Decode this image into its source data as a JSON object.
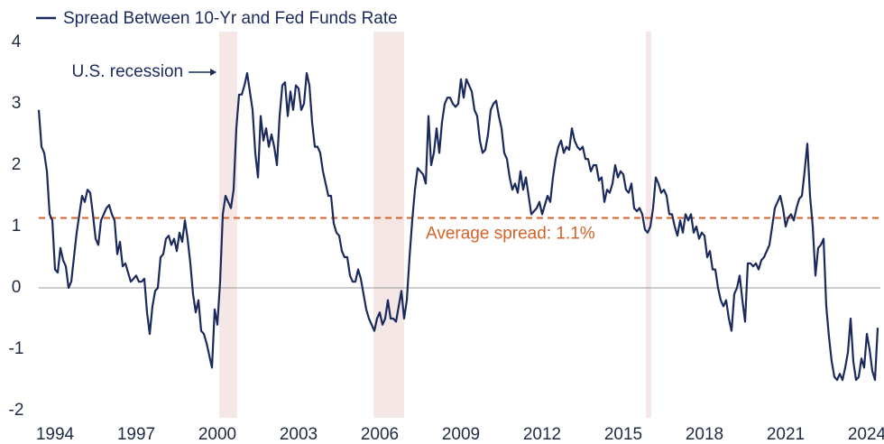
{
  "chart_data": {
    "type": "line",
    "series": [
      {
        "name": "Spread Between 10-Yr and Fed Funds Rate",
        "color": "#1b2a5c",
        "x": [
          1993.4,
          1993.5,
          1993.6,
          1993.7,
          1993.8,
          1993.9,
          1994,
          1994.1,
          1994.2,
          1994.3,
          1994.4,
          1994.5,
          1994.6,
          1994.7,
          1994.8,
          1994.9,
          1995,
          1995.1,
          1995.2,
          1995.3,
          1995.4,
          1995.5,
          1995.6,
          1995.7,
          1995.8,
          1995.9,
          1996,
          1996.1,
          1996.2,
          1996.3,
          1996.4,
          1996.5,
          1996.6,
          1996.7,
          1996.8,
          1996.9,
          1997,
          1997.1,
          1997.2,
          1997.3,
          1997.4,
          1997.5,
          1997.6,
          1997.7,
          1997.8,
          1997.9,
          1998,
          1998.1,
          1998.2,
          1998.3,
          1998.4,
          1998.5,
          1998.6,
          1998.7,
          1998.8,
          1998.9,
          1999,
          1999.1,
          1999.2,
          1999.3,
          1999.4,
          1999.5,
          1999.6,
          1999.7,
          1999.8,
          1999.9,
          2000,
          2000.1,
          2000.2,
          2000.3,
          2000.4,
          2000.5,
          2000.6,
          2000.7,
          2000.8,
          2000.9,
          2001,
          2001.1,
          2001.2,
          2001.3,
          2001.4,
          2001.5,
          2001.6,
          2001.7,
          2001.8,
          2001.9,
          2002,
          2002.1,
          2002.2,
          2002.3,
          2002.4,
          2002.5,
          2002.6,
          2002.7,
          2002.8,
          2002.9,
          2003,
          2003.1,
          2003.2,
          2003.3,
          2003.4,
          2003.5,
          2003.6,
          2003.7,
          2003.8,
          2003.9,
          2004,
          2004.1,
          2004.2,
          2004.3,
          2004.4,
          2004.5,
          2004.6,
          2004.7,
          2004.8,
          2004.9,
          2005,
          2005.1,
          2005.2,
          2005.3,
          2005.4,
          2005.5,
          2005.6,
          2005.7,
          2005.8,
          2005.9,
          2006,
          2006.1,
          2006.2,
          2006.3,
          2006.4,
          2006.5,
          2006.6,
          2006.7,
          2006.8,
          2006.9,
          2007,
          2007.1,
          2007.2,
          2007.3,
          2007.4,
          2007.5,
          2007.6,
          2007.7,
          2007.8,
          2007.9,
          2008,
          2008.1,
          2008.2,
          2008.3,
          2008.4,
          2008.5,
          2008.6,
          2008.7,
          2008.8,
          2008.9,
          2009,
          2009.1,
          2009.2,
          2009.3,
          2009.4,
          2009.5,
          2009.6,
          2009.7,
          2009.8,
          2009.9,
          2010,
          2010.1,
          2010.2,
          2010.3,
          2010.4,
          2010.5,
          2010.6,
          2010.7,
          2010.8,
          2010.9,
          2011,
          2011.1,
          2011.2,
          2011.3,
          2011.4,
          2011.5,
          2011.6,
          2011.7,
          2011.8,
          2011.9,
          2012,
          2012.1,
          2012.2,
          2012.3,
          2012.4,
          2012.5,
          2012.6,
          2012.7,
          2012.8,
          2012.9,
          2013,
          2013.1,
          2013.2,
          2013.3,
          2013.4,
          2013.5,
          2013.6,
          2013.7,
          2013.8,
          2013.9,
          2014,
          2014.1,
          2014.2,
          2014.3,
          2014.4,
          2014.5,
          2014.6,
          2014.7,
          2014.8,
          2014.9,
          2015,
          2015.1,
          2015.2,
          2015.3,
          2015.4,
          2015.5,
          2015.6,
          2015.7,
          2015.8,
          2015.9,
          2016,
          2016.1,
          2016.2,
          2016.3,
          2016.4,
          2016.5,
          2016.6,
          2016.7,
          2016.8,
          2016.9,
          2017,
          2017.1,
          2017.2,
          2017.3,
          2017.4,
          2017.5,
          2017.6,
          2017.7,
          2017.8,
          2017.9,
          2018,
          2018.1,
          2018.2,
          2018.3,
          2018.4,
          2018.5,
          2018.6,
          2018.7,
          2018.8,
          2018.9,
          2019,
          2019.1,
          2019.2,
          2019.3,
          2019.4,
          2019.5,
          2019.6,
          2019.7,
          2019.8,
          2019.9,
          2020,
          2020.1,
          2020.2,
          2020.3,
          2020.4,
          2020.5,
          2020.6,
          2020.7,
          2020.8,
          2020.9,
          2021,
          2021.1,
          2021.2,
          2021.3,
          2021.4,
          2021.5,
          2021.6,
          2021.7,
          2021.8,
          2021.9,
          2022,
          2022.1,
          2022.2,
          2022.3,
          2022.4,
          2022.5,
          2022.6,
          2022.7,
          2022.8,
          2022.9,
          2023,
          2023.1,
          2023.2,
          2023.3,
          2023.4,
          2023.5,
          2023.6,
          2023.7,
          2023.8,
          2023.9,
          2024,
          2024.1,
          2024.2,
          2024.3,
          2024.4
        ],
        "values": [
          2.9,
          2.3,
          2.2,
          1.9,
          1.2,
          1.1,
          0.3,
          0.25,
          0.65,
          0.45,
          0.35,
          0.0,
          0.1,
          0.5,
          0.9,
          1.2,
          1.5,
          1.4,
          1.6,
          1.55,
          1.2,
          0.8,
          0.7,
          1.1,
          1.2,
          1.3,
          1.35,
          1.2,
          1.1,
          0.55,
          0.75,
          0.35,
          0.4,
          0.25,
          0.1,
          0.15,
          0.2,
          0.1,
          0.1,
          0.15,
          -0.4,
          -0.75,
          -0.3,
          -0.05,
          0.0,
          0.5,
          0.55,
          0.8,
          0.85,
          0.7,
          0.8,
          0.6,
          0.9,
          0.75,
          1.1,
          0.8,
          0.4,
          -0.1,
          -0.4,
          -0.2,
          -0.7,
          -0.75,
          -0.9,
          -1.1,
          -1.3,
          -0.35,
          -0.6,
          0.1,
          1.2,
          1.5,
          1.4,
          1.3,
          1.6,
          2.6,
          3.15,
          3.15,
          3.3,
          3.5,
          3.2,
          2.9,
          2.2,
          1.8,
          2.8,
          2.4,
          2.6,
          2.3,
          2.5,
          2.3,
          2.0,
          2.8,
          3.3,
          3.35,
          2.8,
          3.2,
          2.9,
          3.3,
          3.25,
          2.9,
          3.0,
          3.5,
          3.3,
          2.7,
          2.3,
          2.3,
          2.2,
          1.9,
          1.7,
          1.5,
          1.5,
          1.05,
          0.9,
          0.85,
          0.6,
          0.5,
          0.5,
          0.2,
          0.1,
          0.1,
          0.3,
          0.15,
          -0.1,
          -0.35,
          -0.5,
          -0.6,
          -0.7,
          -0.5,
          -0.4,
          -0.6,
          -0.5,
          -0.2,
          -0.5,
          -0.5,
          -0.55,
          -0.3,
          -0.05,
          -0.5,
          -0.2,
          0.5,
          1.1,
          1.6,
          1.95,
          1.9,
          1.85,
          1.7,
          2.8,
          2.0,
          2.2,
          2.6,
          2.2,
          2.7,
          3.0,
          3.1,
          3.1,
          3.0,
          2.95,
          3.0,
          3.4,
          3.1,
          3.4,
          3.3,
          3.2,
          2.9,
          2.8,
          2.4,
          2.2,
          2.25,
          2.5,
          2.9,
          3.0,
          3.05,
          2.8,
          2.6,
          2.2,
          2.1,
          1.8,
          1.6,
          1.7,
          1.55,
          1.9,
          1.6,
          1.8,
          1.5,
          1.2,
          1.25,
          1.3,
          1.4,
          1.2,
          1.35,
          1.5,
          1.4,
          1.8,
          2.1,
          2.3,
          2.4,
          2.2,
          2.3,
          2.25,
          2.6,
          2.4,
          2.3,
          2.25,
          2.3,
          2.1,
          2.1,
          1.9,
          2.0,
          2.0,
          1.75,
          1.8,
          1.4,
          1.6,
          1.55,
          1.7,
          2.0,
          1.8,
          1.9,
          1.85,
          1.6,
          1.55,
          1.7,
          1.3,
          1.25,
          1.3,
          1.2,
          0.95,
          0.9,
          1.0,
          1.3,
          1.8,
          1.7,
          1.55,
          1.6,
          1.5,
          1.2,
          1.2,
          1.0,
          0.85,
          1.1,
          0.9,
          1.2,
          1.1,
          1.2,
          0.9,
          1.0,
          0.8,
          0.9,
          0.85,
          0.5,
          0.6,
          0.3,
          0.3,
          0.0,
          -0.2,
          -0.3,
          -0.2,
          -0.5,
          -0.7,
          -0.1,
          0.0,
          0.2,
          -0.2,
          -0.55,
          0.4,
          0.4,
          0.35,
          0.4,
          0.3,
          0.45,
          0.5,
          0.6,
          0.7,
          1.0,
          1.3,
          1.4,
          1.5,
          1.3,
          1.0,
          1.15,
          1.2,
          1.1,
          1.3,
          1.45,
          1.5,
          1.9,
          2.35,
          1.5,
          1.0,
          0.2,
          0.65,
          0.7,
          0.8,
          -0.3,
          -0.8,
          -1.2,
          -1.45,
          -1.5,
          -1.4,
          -1.5,
          -1.3,
          -1.05,
          -0.5,
          -1.2,
          -1.5,
          -1.45,
          -1.15,
          -1.3,
          -0.75,
          -1.0,
          -1.35,
          -1.5,
          -0.65
        ]
      }
    ],
    "xlim": [
      1993.4,
      2024.5
    ],
    "xticks": [
      1994,
      1997,
      2000,
      2003,
      2006,
      2009,
      2012,
      2015,
      2018,
      2021,
      2024
    ],
    "ylim": [
      -2,
      4
    ],
    "yticks": [
      -2,
      -1,
      0,
      1,
      2,
      3,
      4
    ],
    "zero_line": true,
    "average": {
      "value": 1.14,
      "label": "Average spread: 1.1%",
      "color": "#d4622a"
    },
    "recessions": {
      "label": "U.S. recession",
      "color": "#f4e7e5",
      "periods": [
        [
          2000.07,
          2000.73
        ],
        [
          2005.77,
          2006.9
        ],
        [
          2015.83,
          2016.03
        ]
      ]
    },
    "legend": "top-left"
  }
}
